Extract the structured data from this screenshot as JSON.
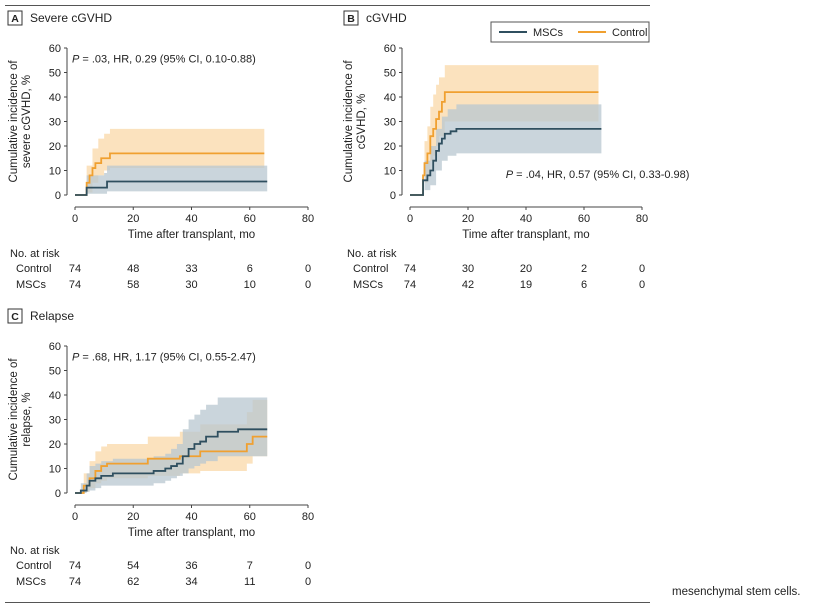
{
  "caption_fragment": "mesenchymal stem cells.",
  "colors": {
    "msc": "#2f4f5f",
    "control": "#f0a030",
    "msc_band": "#b8c7d0",
    "control_band": "#f9d8a8",
    "axis": "#444444"
  },
  "legend": {
    "msc": "MSCs",
    "control": "Control"
  },
  "chart_data": [
    {
      "panel": "A",
      "title": "Severe cGVHD",
      "type": "line",
      "step": true,
      "ylabel": "Cumulative incidence of severe cGVHD, %",
      "xlabel": "Time after transplant, mo",
      "xlim": [
        0,
        80
      ],
      "ylim": [
        0,
        60
      ],
      "xticks": [
        0,
        20,
        40,
        60,
        80
      ],
      "yticks": [
        0,
        10,
        20,
        30,
        40,
        50,
        60
      ],
      "annotation": "P = .03, HR, 0.29 (95% CI, 0.10-0.88)",
      "series": [
        {
          "name": "Control",
          "key": "control",
          "points": [
            [
              0,
              0
            ],
            [
              3,
              0
            ],
            [
              4,
              5
            ],
            [
              5,
              8
            ],
            [
              6,
              11
            ],
            [
              7,
              13
            ],
            [
              9,
              15
            ],
            [
              12,
              17
            ],
            [
              65,
              17
            ]
          ],
          "band_upper": [
            [
              3,
              0
            ],
            [
              4,
              12
            ],
            [
              6,
              19
            ],
            [
              8,
              23
            ],
            [
              10,
              25
            ],
            [
              12,
              27
            ],
            [
              65,
              27
            ]
          ],
          "band_lower": [
            [
              3,
              0
            ],
            [
              4,
              1
            ],
            [
              6,
              5
            ],
            [
              8,
              8
            ],
            [
              10,
              10
            ],
            [
              12,
              11
            ],
            [
              65,
              11
            ]
          ]
        },
        {
          "name": "MSCs",
          "key": "msc",
          "points": [
            [
              0,
              0
            ],
            [
              3,
              0
            ],
            [
              4,
              3
            ],
            [
              10,
              3
            ],
            [
              11,
              5.5
            ],
            [
              66,
              5.5
            ]
          ],
          "band_upper": [
            [
              3,
              0
            ],
            [
              4,
              8
            ],
            [
              10,
              9
            ],
            [
              11,
              12
            ],
            [
              66,
              12
            ]
          ],
          "band_lower": [
            [
              3,
              0
            ],
            [
              4,
              0.5
            ],
            [
              10,
              0.5
            ],
            [
              11,
              1.5
            ],
            [
              66,
              1.5
            ]
          ]
        }
      ],
      "risk_table": {
        "header": "No. at risk",
        "times": [
          0,
          20,
          40,
          60,
          80
        ],
        "rows": [
          {
            "label": "Control",
            "values": [
              "74",
              "48",
              "33",
              "6",
              "0"
            ]
          },
          {
            "label": "MSCs",
            "values": [
              "74",
              "58",
              "30",
              "10",
              "0"
            ]
          }
        ]
      }
    },
    {
      "panel": "B",
      "title": "cGVHD",
      "type": "line",
      "step": true,
      "ylabel": "Cumulative incidence of cGVHD, %",
      "xlabel": "Time after transplant, mo",
      "xlim": [
        0,
        80
      ],
      "ylim": [
        0,
        60
      ],
      "xticks": [
        0,
        20,
        40,
        60,
        80
      ],
      "yticks": [
        0,
        10,
        20,
        30,
        40,
        50,
        60
      ],
      "annotation": "P = .04, HR, 0.57 (95% CI, 0.33-0.98)",
      "series": [
        {
          "name": "Control",
          "key": "control",
          "points": [
            [
              0,
              0
            ],
            [
              4,
              0
            ],
            [
              4.5,
              8
            ],
            [
              5,
              13
            ],
            [
              6,
              17
            ],
            [
              7,
              24
            ],
            [
              8,
              27
            ],
            [
              9,
              31
            ],
            [
              10,
              34
            ],
            [
              11,
              38
            ],
            [
              12,
              42
            ],
            [
              65,
              42
            ]
          ],
          "band_upper": [
            [
              4,
              0
            ],
            [
              5,
              22
            ],
            [
              6,
              28
            ],
            [
              7,
              36
            ],
            [
              8,
              41
            ],
            [
              9,
              45
            ],
            [
              10,
              48
            ],
            [
              12,
              53
            ],
            [
              65,
              53
            ]
          ],
          "band_lower": [
            [
              4,
              0
            ],
            [
              5,
              5
            ],
            [
              6,
              8
            ],
            [
              7,
              14
            ],
            [
              8,
              16
            ],
            [
              9,
              20
            ],
            [
              10,
              24
            ],
            [
              12,
              30
            ],
            [
              65,
              30
            ]
          ]
        },
        {
          "name": "MSCs",
          "key": "msc",
          "points": [
            [
              0,
              0
            ],
            [
              4,
              0
            ],
            [
              4.5,
              6
            ],
            [
              6,
              8
            ],
            [
              7,
              10
            ],
            [
              8,
              14
            ],
            [
              9,
              18
            ],
            [
              10,
              21
            ],
            [
              11,
              23
            ],
            [
              12,
              25
            ],
            [
              14,
              26
            ],
            [
              16,
              27
            ],
            [
              66,
              27
            ]
          ],
          "band_upper": [
            [
              4,
              0
            ],
            [
              5,
              14
            ],
            [
              7,
              20
            ],
            [
              9,
              27
            ],
            [
              11,
              32
            ],
            [
              13,
              35
            ],
            [
              16,
              37
            ],
            [
              66,
              37
            ]
          ],
          "band_lower": [
            [
              4,
              0
            ],
            [
              5,
              2
            ],
            [
              7,
              4
            ],
            [
              9,
              10
            ],
            [
              11,
              14
            ],
            [
              13,
              16
            ],
            [
              16,
              17
            ],
            [
              66,
              17
            ]
          ]
        }
      ],
      "risk_table": {
        "header": "No. at risk",
        "times": [
          0,
          20,
          40,
          60,
          80
        ],
        "rows": [
          {
            "label": "Control",
            "values": [
              "74",
              "30",
              "20",
              "2",
              "0"
            ]
          },
          {
            "label": "MSCs",
            "values": [
              "74",
              "42",
              "19",
              "6",
              "0"
            ]
          }
        ]
      }
    },
    {
      "panel": "C",
      "title": "Relapse",
      "type": "line",
      "step": true,
      "ylabel": "Cumulative incidence of relapse, %",
      "xlabel": "Time after transplant, mo",
      "xlim": [
        0,
        80
      ],
      "ylim": [
        0,
        60
      ],
      "xticks": [
        0,
        20,
        40,
        60,
        80
      ],
      "yticks": [
        0,
        10,
        20,
        30,
        40,
        50,
        60
      ],
      "annotation": "P = .68, HR, 1.17 (95% CI, 0.55-2.47)",
      "series": [
        {
          "name": "Control",
          "key": "control",
          "points": [
            [
              0,
              0
            ],
            [
              2,
              0
            ],
            [
              3,
              3
            ],
            [
              5,
              6
            ],
            [
              7,
              9
            ],
            [
              9,
              11
            ],
            [
              11,
              12
            ],
            [
              24,
              12
            ],
            [
              25,
              14
            ],
            [
              35,
              14
            ],
            [
              36,
              15
            ],
            [
              42,
              15
            ],
            [
              43,
              17
            ],
            [
              58,
              17
            ],
            [
              59,
              20
            ],
            [
              61,
              23
            ],
            [
              66,
              23
            ]
          ],
          "band_upper": [
            [
              2,
              0
            ],
            [
              3,
              8
            ],
            [
              5,
              13
            ],
            [
              7,
              17
            ],
            [
              9,
              19
            ],
            [
              11,
              20
            ],
            [
              24,
              20
            ],
            [
              25,
              23
            ],
            [
              35,
              23
            ],
            [
              36,
              25
            ],
            [
              42,
              25
            ],
            [
              43,
              28
            ],
            [
              58,
              28
            ],
            [
              59,
              33
            ],
            [
              61,
              38
            ],
            [
              66,
              38
            ]
          ],
          "band_lower": [
            [
              2,
              0
            ],
            [
              3,
              0.5
            ],
            [
              5,
              2
            ],
            [
              7,
              4
            ],
            [
              9,
              5
            ],
            [
              11,
              6
            ],
            [
              24,
              6
            ],
            [
              25,
              7
            ],
            [
              35,
              7
            ],
            [
              36,
              8
            ],
            [
              42,
              8
            ],
            [
              43,
              9
            ],
            [
              58,
              9
            ],
            [
              59,
              12
            ],
            [
              61,
              15
            ],
            [
              66,
              15
            ]
          ]
        },
        {
          "name": "MSCs",
          "key": "msc",
          "points": [
            [
              0,
              0
            ],
            [
              1,
              0
            ],
            [
              2,
              1
            ],
            [
              4,
              3
            ],
            [
              5,
              5
            ],
            [
              7,
              6
            ],
            [
              9,
              7
            ],
            [
              13,
              8
            ],
            [
              26,
              8
            ],
            [
              27,
              9
            ],
            [
              31,
              10
            ],
            [
              33,
              11
            ],
            [
              35,
              12
            ],
            [
              37,
              15
            ],
            [
              39,
              18
            ],
            [
              41,
              20
            ],
            [
              43,
              21
            ],
            [
              45,
              23
            ],
            [
              49,
              25
            ],
            [
              56,
              26
            ],
            [
              66,
              26
            ]
          ],
          "band_upper": [
            [
              1,
              0
            ],
            [
              2,
              4
            ],
            [
              4,
              8
            ],
            [
              5,
              11
            ],
            [
              7,
              12
            ],
            [
              9,
              13
            ],
            [
              13,
              14
            ],
            [
              26,
              14
            ],
            [
              27,
              15
            ],
            [
              31,
              16
            ],
            [
              33,
              18
            ],
            [
              35,
              20
            ],
            [
              37,
              26
            ],
            [
              39,
              30
            ],
            [
              41,
              32
            ],
            [
              43,
              34
            ],
            [
              45,
              36
            ],
            [
              49,
              39
            ],
            [
              66,
              39
            ]
          ],
          "band_lower": [
            [
              1,
              0
            ],
            [
              2,
              0
            ],
            [
              4,
              0.5
            ],
            [
              5,
              1
            ],
            [
              7,
              2
            ],
            [
              9,
              3
            ],
            [
              13,
              3
            ],
            [
              26,
              3
            ],
            [
              27,
              4
            ],
            [
              31,
              5
            ],
            [
              33,
              6
            ],
            [
              35,
              7
            ],
            [
              37,
              8
            ],
            [
              39,
              10
            ],
            [
              41,
              11
            ],
            [
              43,
              12
            ],
            [
              45,
              13
            ],
            [
              49,
              15
            ],
            [
              66,
              15
            ]
          ]
        }
      ],
      "risk_table": {
        "header": "No. at risk",
        "times": [
          0,
          20,
          40,
          60,
          80
        ],
        "rows": [
          {
            "label": "Control",
            "values": [
              "74",
              "54",
              "36",
              "7",
              "0"
            ]
          },
          {
            "label": "MSCs",
            "values": [
              "74",
              "62",
              "34",
              "11",
              "0"
            ]
          }
        ]
      }
    }
  ]
}
